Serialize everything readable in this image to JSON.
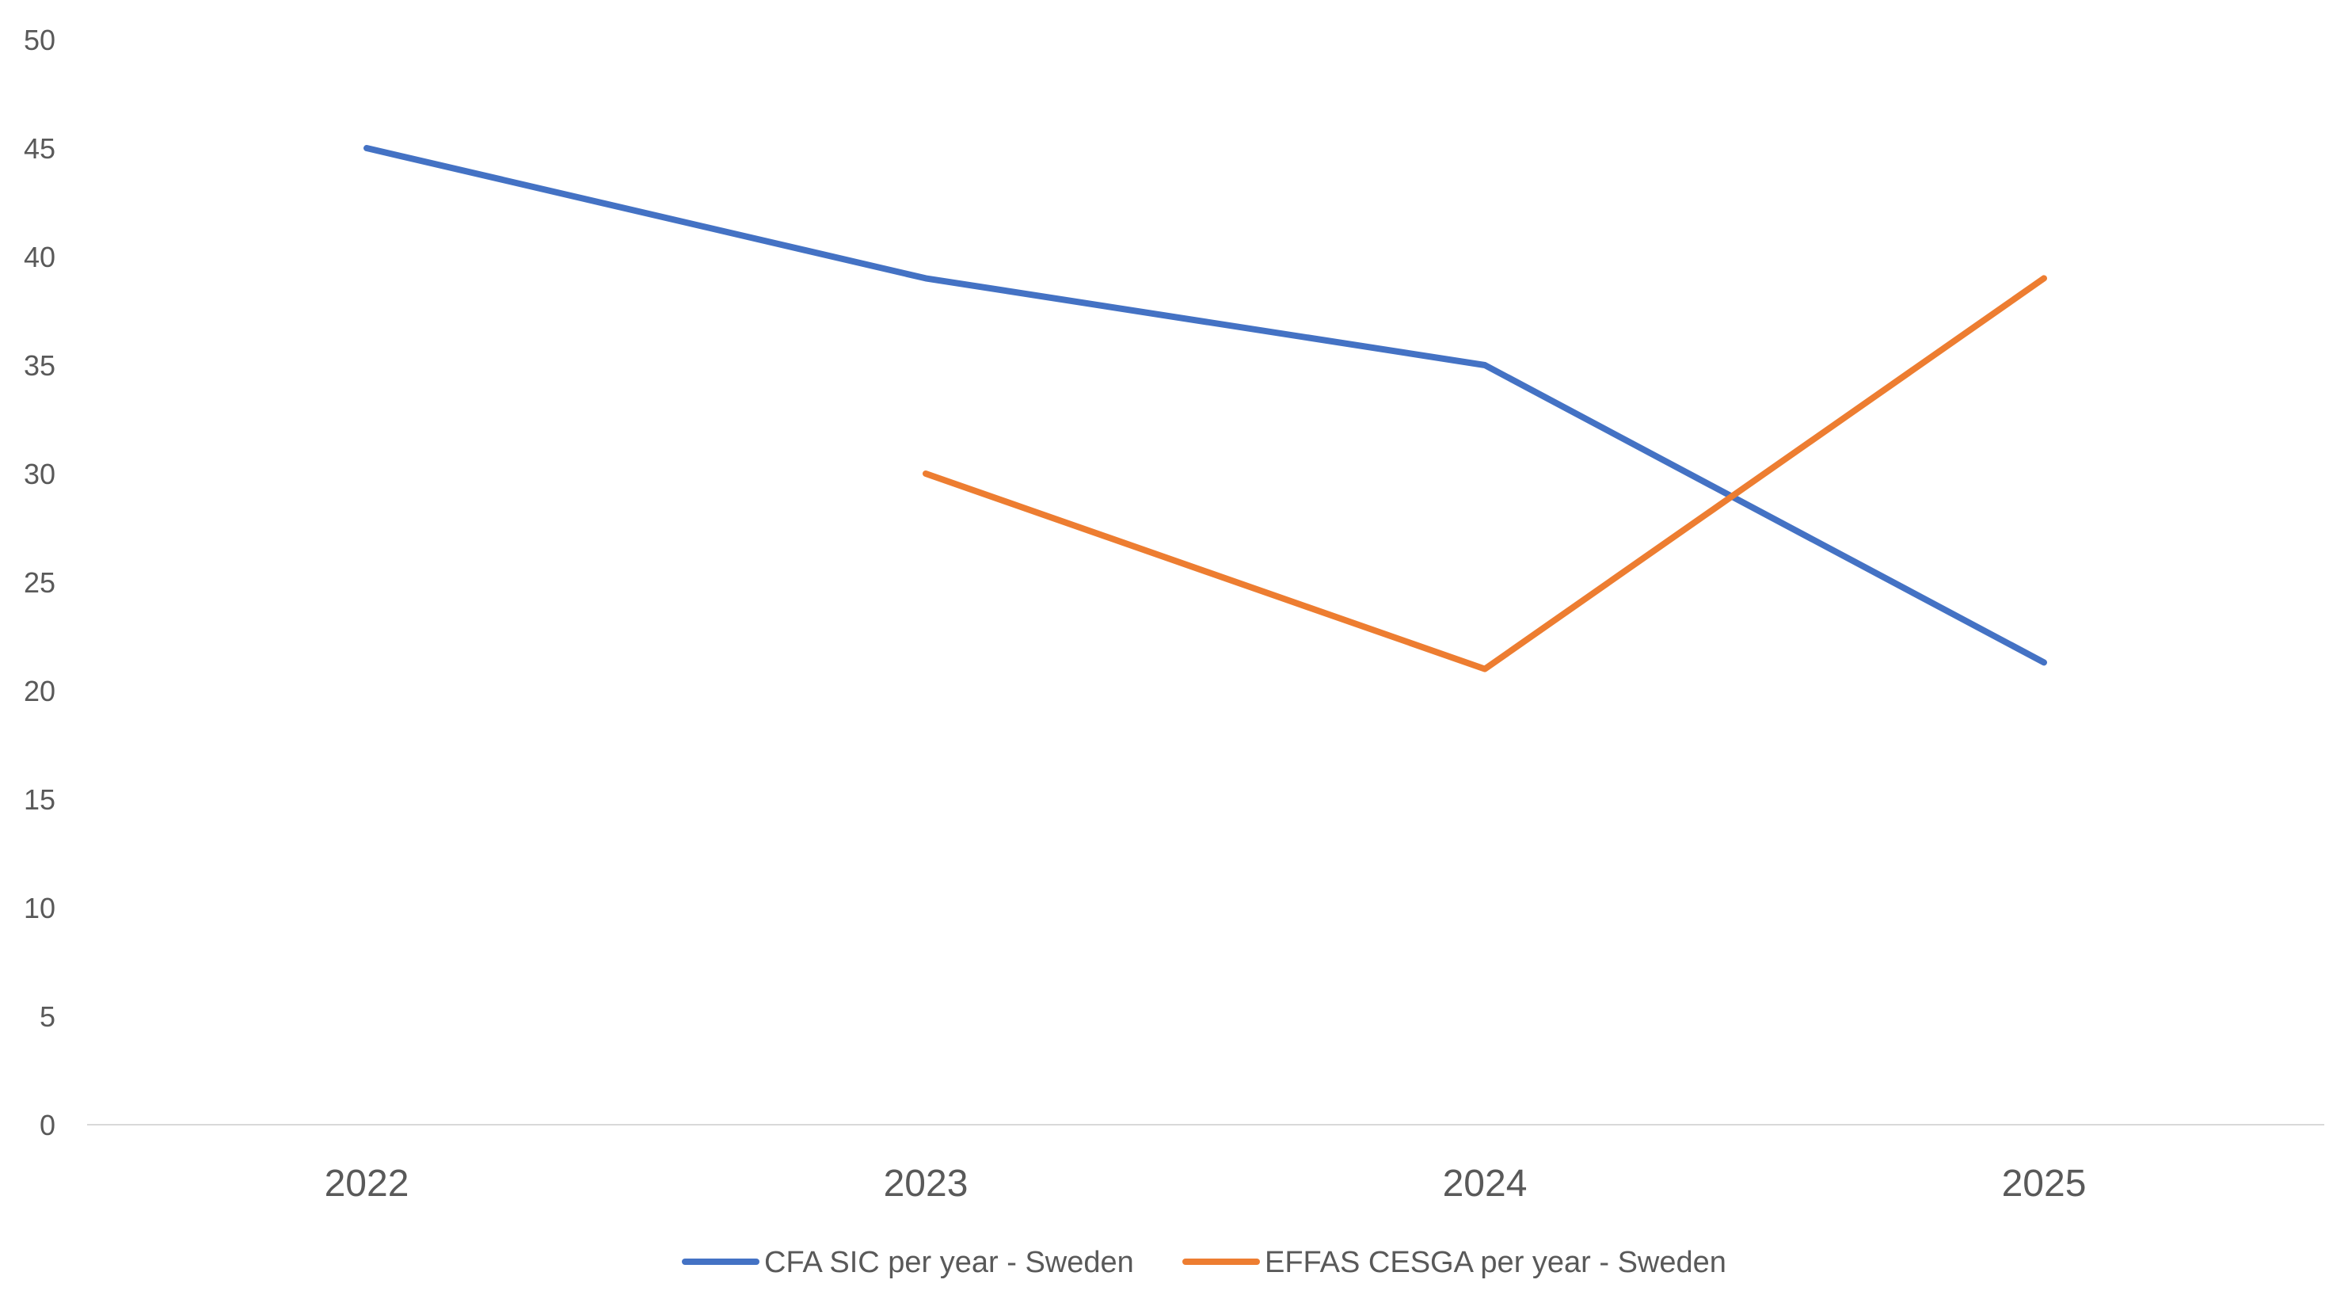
{
  "chart_data": {
    "type": "line",
    "title": "",
    "xlabel": "",
    "ylabel": "",
    "categories": [
      "2022",
      "2023",
      "2024",
      "2025"
    ],
    "ylim": [
      0,
      50
    ],
    "yticks": [
      "0",
      "5",
      "10",
      "15",
      "20",
      "25",
      "30",
      "35",
      "40",
      "45",
      "50"
    ],
    "grid": false,
    "legend_position": "bottom",
    "series": [
      {
        "name": "CFA SIC per year - Sweden",
        "color": "#4472C4",
        "values": [
          45,
          39,
          35,
          21.3
        ]
      },
      {
        "name": "EFFAS CESGA per year - Sweden",
        "color": "#ED7D31",
        "values": [
          null,
          30,
          21,
          39
        ]
      }
    ]
  }
}
